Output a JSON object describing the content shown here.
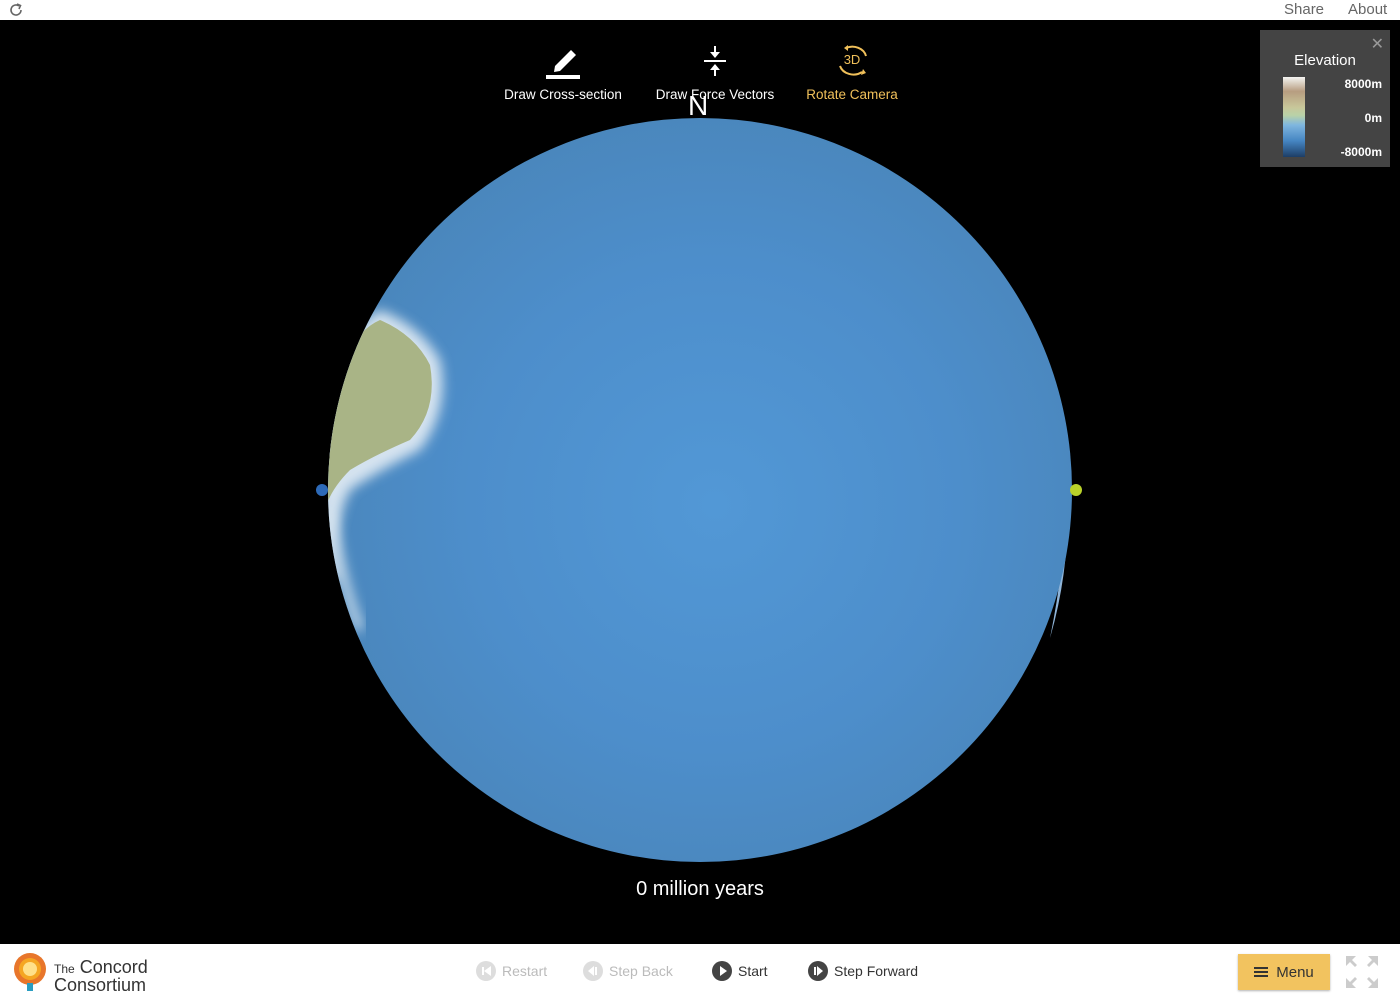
{
  "topbar": {
    "share_label": "Share",
    "about_label": "About"
  },
  "tools": [
    {
      "label": "Draw Cross-section",
      "icon": "pencil-icon",
      "active": false
    },
    {
      "label": "Draw Force Vectors",
      "icon": "force-vectors-icon",
      "active": false
    },
    {
      "label": "Rotate Camera",
      "icon": "rotate-3d-icon",
      "icon_text": "3D",
      "active": true
    }
  ],
  "compass": {
    "north_label": "N"
  },
  "legend": {
    "title": "Elevation",
    "max_label": "8000m",
    "mid_label": "0m",
    "min_label": "-8000m"
  },
  "time_label": "0 million years",
  "logo": {
    "line1_small": "The",
    "line1_big": "Concord",
    "line2": "Consortium"
  },
  "controls": {
    "restart_label": "Restart",
    "step_back_label": "Step Back",
    "start_label": "Start",
    "step_forward_label": "Step Forward"
  },
  "menu_label": "Menu",
  "colors": {
    "accent": "#f0c05a",
    "menu_bg": "#f2c35f",
    "ocean": "#4f90cc",
    "land": "#a9b486"
  }
}
